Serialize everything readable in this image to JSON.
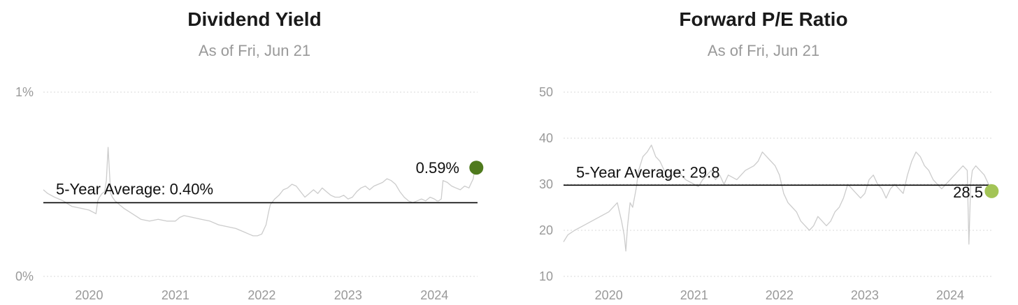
{
  "chart_data": [
    {
      "type": "line",
      "title": "Dividend Yield",
      "subtitle": "As of Fri, Jun 21",
      "ylim": [
        0,
        1
      ],
      "yticks": [
        0,
        1
      ],
      "ytick_labels": [
        "0%",
        "1%"
      ],
      "xlim": [
        2019.47,
        2024.5
      ],
      "xticks": [
        2020,
        2021,
        2022,
        2023,
        2024
      ],
      "xtick_labels": [
        "2020",
        "2021",
        "2022",
        "2023",
        "2024"
      ],
      "grid": true,
      "average": {
        "value": 0.4,
        "label": "5-Year Average: 0.40%"
      },
      "last": {
        "x": 2024.47,
        "value": 0.59,
        "label": "0.59%",
        "color": "#4f7a1d"
      },
      "line_color": "#cccccc",
      "series": [
        {
          "x": [
            2019.47,
            2019.52,
            2019.6,
            2019.7,
            2019.8,
            2019.9,
            2020.0,
            2020.08,
            2020.1,
            2020.12,
            2020.15,
            2020.18,
            2020.2,
            2020.22,
            2020.25,
            2020.27,
            2020.3,
            2020.35,
            2020.4,
            2020.5,
            2020.6,
            2020.7,
            2020.8,
            2020.9,
            2021.0,
            2021.05,
            2021.1,
            2021.2,
            2021.3,
            2021.4,
            2021.5,
            2021.6,
            2021.7,
            2021.75,
            2021.8,
            2021.85,
            2021.9,
            2021.95,
            2022.0,
            2022.05,
            2022.08,
            2022.1,
            2022.15,
            2022.2,
            2022.25,
            2022.3,
            2022.35,
            2022.4,
            2022.45,
            2022.5,
            2022.55,
            2022.6,
            2022.65,
            2022.7,
            2022.75,
            2022.8,
            2022.85,
            2022.9,
            2022.95,
            2023.0,
            2023.05,
            2023.1,
            2023.15,
            2023.2,
            2023.25,
            2023.3,
            2023.35,
            2023.4,
            2023.45,
            2023.5,
            2023.55,
            2023.6,
            2023.65,
            2023.7,
            2023.75,
            2023.8,
            2023.85,
            2023.9,
            2023.95,
            2024.0,
            2024.03,
            2024.05,
            2024.08,
            2024.1,
            2024.15,
            2024.2,
            2024.25,
            2024.3,
            2024.35,
            2024.4,
            2024.45,
            2024.47
          ],
          "values": [
            0.47,
            0.45,
            0.43,
            0.41,
            0.38,
            0.37,
            0.36,
            0.34,
            0.41,
            0.43,
            0.45,
            0.46,
            0.52,
            0.7,
            0.45,
            0.43,
            0.41,
            0.39,
            0.37,
            0.34,
            0.31,
            0.3,
            0.31,
            0.3,
            0.3,
            0.32,
            0.33,
            0.32,
            0.31,
            0.3,
            0.28,
            0.27,
            0.26,
            0.25,
            0.24,
            0.23,
            0.22,
            0.22,
            0.23,
            0.28,
            0.35,
            0.39,
            0.42,
            0.44,
            0.47,
            0.48,
            0.5,
            0.49,
            0.46,
            0.43,
            0.45,
            0.47,
            0.45,
            0.48,
            0.46,
            0.44,
            0.43,
            0.43,
            0.44,
            0.42,
            0.43,
            0.46,
            0.48,
            0.49,
            0.47,
            0.49,
            0.5,
            0.51,
            0.53,
            0.52,
            0.5,
            0.46,
            0.43,
            0.41,
            0.4,
            0.41,
            0.42,
            0.41,
            0.43,
            0.42,
            0.41,
            0.41,
            0.42,
            0.52,
            0.51,
            0.49,
            0.48,
            0.47,
            0.49,
            0.48,
            0.53,
            0.59
          ]
        }
      ]
    },
    {
      "type": "line",
      "title": "Forward P/E Ratio",
      "subtitle": "As of Fri, Jun 21",
      "ylim": [
        10,
        50
      ],
      "yticks": [
        10,
        20,
        30,
        40,
        50
      ],
      "ytick_labels": [
        "10",
        "20",
        "30",
        "40",
        "50"
      ],
      "xlim": [
        2019.47,
        2024.5
      ],
      "xticks": [
        2020,
        2021,
        2022,
        2023,
        2024
      ],
      "xtick_labels": [
        "2020",
        "2021",
        "2022",
        "2023",
        "2024"
      ],
      "grid": true,
      "average": {
        "value": 29.8,
        "label": "5-Year Average: 29.8"
      },
      "last": {
        "x": 2024.47,
        "value": 28.5,
        "label": "28.5",
        "color": "#a3c456"
      },
      "line_color": "#cccccc",
      "series": [
        {
          "x": [
            2019.47,
            2019.52,
            2019.6,
            2019.7,
            2019.8,
            2019.9,
            2020.0,
            2020.1,
            2020.15,
            2020.18,
            2020.2,
            2020.22,
            2020.25,
            2020.28,
            2020.32,
            2020.35,
            2020.4,
            2020.45,
            2020.5,
            2020.55,
            2020.6,
            2020.65,
            2020.7,
            2020.75,
            2020.8,
            2020.9,
            2021.0,
            2021.05,
            2021.1,
            2021.15,
            2021.2,
            2021.25,
            2021.3,
            2021.35,
            2021.4,
            2021.5,
            2021.6,
            2021.7,
            2021.75,
            2021.8,
            2021.85,
            2021.9,
            2021.95,
            2022.0,
            2022.05,
            2022.1,
            2022.15,
            2022.2,
            2022.25,
            2022.3,
            2022.35,
            2022.4,
            2022.45,
            2022.5,
            2022.55,
            2022.6,
            2022.65,
            2022.7,
            2022.75,
            2022.8,
            2022.85,
            2022.9,
            2022.95,
            2023.0,
            2023.05,
            2023.1,
            2023.15,
            2023.2,
            2023.25,
            2023.3,
            2023.35,
            2023.4,
            2023.45,
            2023.5,
            2023.55,
            2023.6,
            2023.65,
            2023.7,
            2023.75,
            2023.8,
            2023.85,
            2023.9,
            2023.95,
            2024.0,
            2024.05,
            2024.1,
            2024.15,
            2024.2,
            2024.22,
            2024.24,
            2024.26,
            2024.3,
            2024.35,
            2024.4,
            2024.45,
            2024.47
          ],
          "values": [
            17.5,
            19,
            20,
            21,
            22,
            23,
            24,
            26,
            22,
            19,
            15.5,
            21,
            26,
            25,
            29,
            33,
            36,
            37,
            38.5,
            36,
            35,
            33,
            31,
            32,
            33,
            31,
            30,
            29.5,
            31,
            32,
            33,
            31,
            32,
            30,
            32,
            31,
            33,
            34,
            35,
            37,
            36,
            35,
            34,
            32,
            28,
            26,
            25,
            24,
            22,
            21,
            20,
            21,
            23,
            22,
            21,
            22,
            24,
            25,
            27,
            30,
            29,
            28,
            27,
            28,
            31,
            32,
            30,
            29,
            27,
            29,
            30,
            29,
            28,
            32,
            35,
            37,
            36,
            34,
            33,
            31,
            30,
            29,
            30,
            31,
            32,
            33,
            34,
            33,
            17,
            30,
            33,
            34,
            33,
            32,
            30,
            28.5
          ]
        }
      ]
    }
  ]
}
